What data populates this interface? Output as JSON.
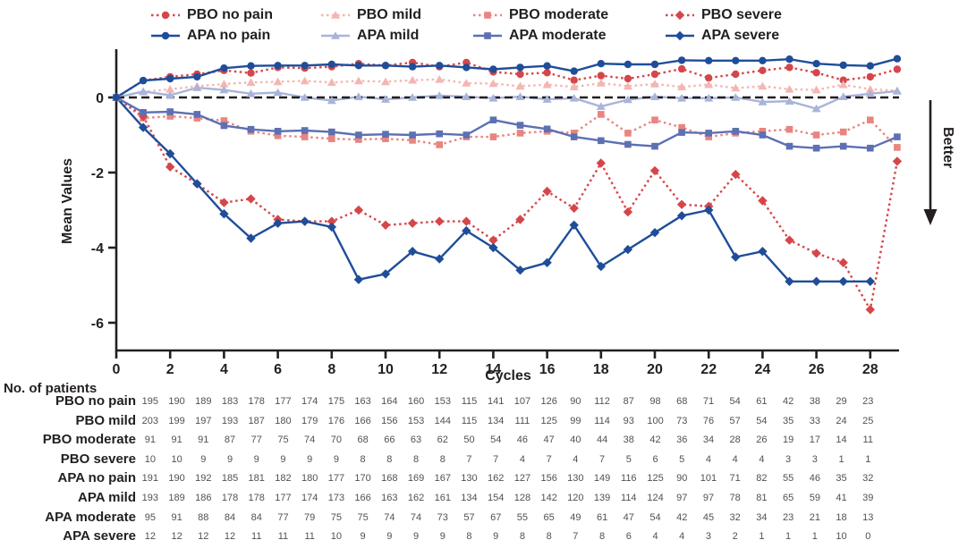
{
  "figure": {
    "ylabel": "Mean Values",
    "xlabel": "Cycles",
    "better_label": "Better"
  },
  "colors": {
    "pbo_red": "#d5464a",
    "pbo_pink": "#f3b6b2",
    "pbo_salmon": "#e9847e",
    "apa_navy": "#1f4d99",
    "apa_light_blue": "#a8b4da",
    "apa_medium_blue": "#5c70b3",
    "axis_black": "#231f20",
    "table_gray": "#515153"
  },
  "chart_data": {
    "type": "line",
    "x": [
      0,
      1,
      2,
      3,
      4,
      5,
      6,
      7,
      8,
      9,
      10,
      11,
      12,
      13,
      14,
      15,
      16,
      17,
      18,
      19,
      20,
      21,
      22,
      23,
      24,
      25,
      26,
      27,
      28,
      29
    ],
    "xticks": [
      0,
      2,
      4,
      6,
      8,
      10,
      12,
      14,
      16,
      18,
      20,
      22,
      24,
      26,
      28
    ],
    "yticks": [
      0,
      -2,
      -4,
      -6
    ],
    "ylim": [
      -6.7,
      1.3
    ],
    "xlabel": "Cycles",
    "ylabel": "Mean Values",
    "zero_reference_line": true,
    "legend_position": "top",
    "grid": false,
    "series": [
      {
        "name": "PBO no pain",
        "color": "#d5464a",
        "line": "dotted",
        "marker": "circle",
        "values": [
          0,
          0.45,
          0.55,
          0.62,
          0.72,
          0.65,
          0.8,
          0.78,
          0.82,
          0.9,
          0.85,
          0.93,
          0.82,
          0.93,
          0.68,
          0.62,
          0.66,
          0.46,
          0.58,
          0.5,
          0.62,
          0.76,
          0.52,
          0.62,
          0.72,
          0.8,
          0.66,
          0.46,
          0.55,
          0.75
        ]
      },
      {
        "name": "PBO mild",
        "color": "#f3b6b2",
        "line": "dotted",
        "marker": "triangle",
        "values": [
          0,
          0.15,
          0.22,
          0.3,
          0.36,
          0.4,
          0.42,
          0.44,
          0.4,
          0.44,
          0.42,
          0.46,
          0.48,
          0.38,
          0.37,
          0.3,
          0.34,
          0.28,
          0.38,
          0.3,
          0.36,
          0.28,
          0.34,
          0.25,
          0.3,
          0.22,
          0.2,
          0.34,
          0.22,
          0.18
        ]
      },
      {
        "name": "PBO moderate",
        "color": "#e9847e",
        "line": "dotted",
        "marker": "square",
        "values": [
          0,
          -0.55,
          -0.5,
          -0.55,
          -0.62,
          -0.9,
          -1.02,
          -1.05,
          -1.1,
          -1.12,
          -1.1,
          -1.14,
          -1.26,
          -1.05,
          -1.05,
          -0.95,
          -0.9,
          -0.95,
          -0.45,
          -0.95,
          -0.6,
          -0.8,
          -1.05,
          -0.95,
          -0.9,
          -0.85,
          -1.0,
          -0.92,
          -0.6,
          -1.33
        ]
      },
      {
        "name": "PBO severe",
        "color": "#d5464a",
        "line": "dotted",
        "marker": "diamond",
        "values": [
          0,
          -0.5,
          -1.85,
          -2.3,
          -2.8,
          -2.7,
          -3.25,
          -3.3,
          -3.3,
          -3.0,
          -3.4,
          -3.35,
          -3.3,
          -3.3,
          -3.8,
          -3.25,
          -2.5,
          -2.95,
          -1.75,
          -3.05,
          -1.95,
          -2.85,
          -2.9,
          -2.05,
          -2.75,
          -3.8,
          -4.15,
          -4.4,
          -5.65,
          -1.7
        ]
      },
      {
        "name": "APA no pain",
        "color": "#1f4d99",
        "line": "solid",
        "marker": "circle",
        "values": [
          0,
          0.45,
          0.5,
          0.55,
          0.78,
          0.84,
          0.85,
          0.85,
          0.88,
          0.85,
          0.85,
          0.82,
          0.85,
          0.8,
          0.75,
          0.8,
          0.84,
          0.7,
          0.9,
          0.88,
          0.88,
          0.99,
          0.98,
          0.98,
          0.98,
          1.02,
          0.9,
          0.86,
          0.84,
          1.03
        ]
      },
      {
        "name": "APA mild",
        "color": "#a8b4da",
        "line": "solid",
        "marker": "triangle",
        "values": [
          0,
          0.16,
          0.06,
          0.26,
          0.2,
          0.1,
          0.13,
          0,
          -0.08,
          0.02,
          -0.05,
          0,
          0.05,
          0.02,
          -0.02,
          0.02,
          -0.05,
          -0.02,
          -0.24,
          -0.06,
          0.02,
          -0.02,
          -0.02,
          0,
          -0.12,
          -0.1,
          -0.3,
          0.02,
          0.1,
          0.17
        ]
      },
      {
        "name": "APA moderate",
        "color": "#5c70b3",
        "line": "solid",
        "marker": "square",
        "values": [
          0,
          -0.4,
          -0.38,
          -0.45,
          -0.75,
          -0.85,
          -0.9,
          -0.88,
          -0.92,
          -1.0,
          -0.98,
          -1.0,
          -0.97,
          -1.0,
          -0.6,
          -0.74,
          -0.84,
          -1.05,
          -1.15,
          -1.25,
          -1.3,
          -0.93,
          -0.95,
          -0.9,
          -1.0,
          -1.3,
          -1.35,
          -1.3,
          -1.35,
          -1.05
        ]
      },
      {
        "name": "APA severe",
        "color": "#1f4d99",
        "line": "solid",
        "marker": "diamond",
        "values": [
          0,
          -0.8,
          -1.5,
          -2.3,
          -3.1,
          -3.75,
          -3.35,
          -3.3,
          -3.45,
          -4.85,
          -4.7,
          -4.1,
          -4.3,
          -3.55,
          -4.0,
          -4.6,
          -4.4,
          -3.4,
          -4.5,
          -4.05,
          -3.6,
          -3.15,
          -3.0,
          -4.25,
          -4.1,
          -4.9,
          -4.9,
          -4.9,
          -4.9,
          null
        ]
      }
    ]
  },
  "legend": {
    "rows": [
      [
        0,
        1,
        2,
        3
      ],
      [
        4,
        5,
        6,
        7
      ]
    ]
  },
  "table": {
    "title": "No. of patients",
    "rows": [
      {
        "label": "PBO no pain",
        "values": [
          195,
          190,
          189,
          183,
          178,
          177,
          174,
          175,
          163,
          164,
          160,
          153,
          115,
          141,
          107,
          126,
          90,
          112,
          87,
          98,
          68,
          71,
          54,
          61,
          42,
          38,
          29,
          23
        ]
      },
      {
        "label": "PBO mild",
        "values": [
          203,
          199,
          197,
          193,
          187,
          180,
          179,
          176,
          166,
          156,
          153,
          144,
          115,
          134,
          111,
          125,
          99,
          114,
          93,
          100,
          73,
          76,
          57,
          54,
          35,
          33,
          24,
          25
        ]
      },
      {
        "label": "PBO moderate",
        "values": [
          91,
          91,
          91,
          87,
          77,
          75,
          74,
          70,
          68,
          66,
          63,
          62,
          50,
          54,
          46,
          47,
          40,
          44,
          38,
          42,
          36,
          34,
          28,
          26,
          19,
          17,
          14,
          11
        ]
      },
      {
        "label": "PBO severe",
        "values": [
          10,
          10,
          9,
          9,
          9,
          9,
          9,
          9,
          8,
          8,
          8,
          8,
          7,
          7,
          4,
          7,
          4,
          7,
          5,
          6,
          5,
          4,
          4,
          4,
          3,
          3,
          1,
          1
        ]
      },
      {
        "label": "APA no pain",
        "values": [
          191,
          190,
          192,
          185,
          181,
          182,
          180,
          177,
          170,
          168,
          169,
          167,
          130,
          162,
          127,
          156,
          130,
          149,
          116,
          125,
          90,
          101,
          71,
          82,
          55,
          46,
          35,
          32
        ]
      },
      {
        "label": "APA mild",
        "values": [
          193,
          189,
          186,
          178,
          178,
          177,
          174,
          173,
          166,
          163,
          162,
          161,
          134,
          154,
          128,
          142,
          120,
          139,
          114,
          124,
          97,
          97,
          78,
          81,
          65,
          59,
          41,
          39
        ]
      },
      {
        "label": "APA moderate",
        "values": [
          95,
          91,
          88,
          84,
          84,
          77,
          79,
          75,
          75,
          74,
          74,
          73,
          57,
          67,
          55,
          65,
          49,
          61,
          47,
          54,
          42,
          45,
          32,
          34,
          23,
          21,
          18,
          13
        ]
      },
      {
        "label": "APA severe",
        "values": [
          12,
          12,
          12,
          12,
          11,
          11,
          11,
          10,
          9,
          9,
          9,
          9,
          8,
          9,
          8,
          8,
          7,
          8,
          6,
          4,
          4,
          3,
          2,
          1,
          1,
          1,
          10,
          0
        ]
      }
    ]
  }
}
